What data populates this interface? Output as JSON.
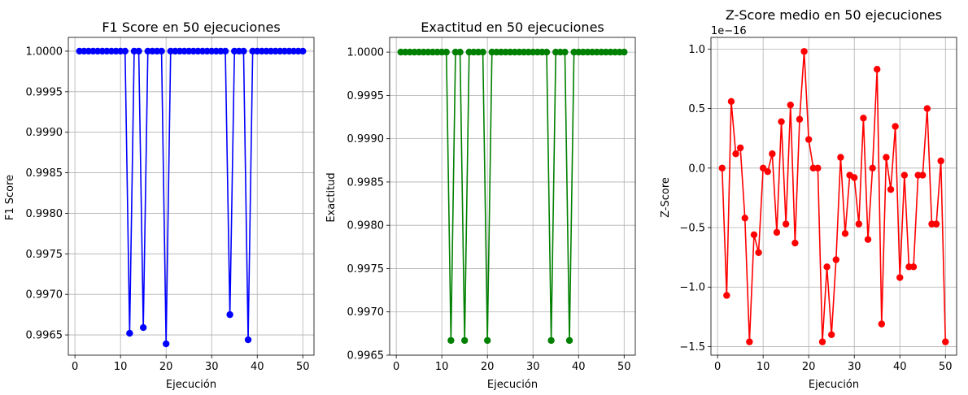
{
  "chart_data": [
    {
      "type": "line",
      "title": "F1 Score en 50 ejecuciones",
      "xlabel": "Ejecución",
      "ylabel": "F1 Score",
      "xlim": [
        -1.45,
        52.45
      ],
      "ylim": [
        0.99625,
        1.00017
      ],
      "xticks": [
        0,
        10,
        20,
        30,
        40,
        50
      ],
      "xtick_labels": [
        "0",
        "10",
        "20",
        "30",
        "40",
        "50"
      ],
      "yticks": [
        0.9965,
        0.997,
        0.9975,
        0.998,
        0.9985,
        0.999,
        0.9995,
        1.0
      ],
      "ytick_labels": [
        "0.9965",
        "0.9970",
        "0.9975",
        "0.9980",
        "0.9985",
        "0.9990",
        "0.9995",
        "1.0000"
      ],
      "grid": true,
      "series": [
        {
          "color": "#0000ff",
          "marker": "circle",
          "x": [
            1,
            2,
            3,
            4,
            5,
            6,
            7,
            8,
            9,
            10,
            11,
            12,
            13,
            14,
            15,
            16,
            17,
            18,
            19,
            20,
            21,
            22,
            23,
            24,
            25,
            26,
            27,
            28,
            29,
            30,
            31,
            32,
            33,
            34,
            35,
            36,
            37,
            38,
            39,
            40,
            41,
            42,
            43,
            44,
            45,
            46,
            47,
            48,
            49,
            50
          ],
          "values": [
            1,
            1,
            1,
            1,
            1,
            1,
            1,
            1,
            1,
            1,
            1,
            0.99652,
            1,
            1,
            0.99659,
            1,
            1,
            1,
            1,
            0.99639,
            1,
            1,
            1,
            1,
            1,
            1,
            1,
            1,
            1,
            1,
            1,
            1,
            1,
            0.99675,
            1,
            1,
            1,
            0.99644,
            1,
            1,
            1,
            1,
            1,
            1,
            1,
            1,
            1,
            1,
            1,
            1
          ]
        }
      ]
    },
    {
      "type": "line",
      "title": "Exactitud en 50 ejecuciones",
      "xlabel": "Ejecución",
      "ylabel": "Exactitud",
      "xlim": [
        -1.45,
        52.45
      ],
      "ylim": [
        0.9965,
        1.00017
      ],
      "xticks": [
        0,
        10,
        20,
        30,
        40,
        50
      ],
      "xtick_labels": [
        "0",
        "10",
        "20",
        "30",
        "40",
        "50"
      ],
      "yticks": [
        0.9965,
        0.997,
        0.9975,
        0.998,
        0.9985,
        0.999,
        0.9995,
        1.0
      ],
      "ytick_labels": [
        "0.9965",
        "0.9970",
        "0.9975",
        "0.9980",
        "0.9985",
        "0.9990",
        "0.9995",
        "1.0000"
      ],
      "grid": true,
      "series": [
        {
          "color": "#008000",
          "marker": "circle",
          "x": [
            1,
            2,
            3,
            4,
            5,
            6,
            7,
            8,
            9,
            10,
            11,
            12,
            13,
            14,
            15,
            16,
            17,
            18,
            19,
            20,
            21,
            22,
            23,
            24,
            25,
            26,
            27,
            28,
            29,
            30,
            31,
            32,
            33,
            34,
            35,
            36,
            37,
            38,
            39,
            40,
            41,
            42,
            43,
            44,
            45,
            46,
            47,
            48,
            49,
            50
          ],
          "values": [
            1,
            1,
            1,
            1,
            1,
            1,
            1,
            1,
            1,
            1,
            1,
            0.99667,
            1,
            1,
            0.99667,
            1,
            1,
            1,
            1,
            0.99667,
            1,
            1,
            1,
            1,
            1,
            1,
            1,
            1,
            1,
            1,
            1,
            1,
            1,
            0.99667,
            1,
            1,
            1,
            0.99667,
            1,
            1,
            1,
            1,
            1,
            1,
            1,
            1,
            1,
            1,
            1,
            1
          ]
        }
      ]
    },
    {
      "type": "line",
      "title": "Z-Score medio en 50 ejecuciones",
      "xlabel": "Ejecución",
      "ylabel": "Z-Score",
      "offset_label": "1e−16",
      "xlim": [
        -1.45,
        52.45
      ],
      "ylim": [
        -1.572,
        1.098
      ],
      "xticks": [
        0,
        10,
        20,
        30,
        40,
        50
      ],
      "xtick_labels": [
        "0",
        "10",
        "20",
        "30",
        "40",
        "50"
      ],
      "yticks": [
        -1.5,
        -1.0,
        -0.5,
        0.0,
        0.5,
        1.0
      ],
      "ytick_labels": [
        "−1.5",
        "−1.0",
        "−0.5",
        "0.0",
        "0.5",
        "1.0"
      ],
      "grid": true,
      "series": [
        {
          "color": "#ff0000",
          "marker": "circle",
          "x": [
            1,
            2,
            3,
            4,
            5,
            6,
            7,
            8,
            9,
            10,
            11,
            12,
            13,
            14,
            15,
            16,
            17,
            18,
            19,
            20,
            21,
            22,
            23,
            24,
            25,
            26,
            27,
            28,
            29,
            30,
            31,
            32,
            33,
            34,
            35,
            36,
            37,
            38,
            39,
            40,
            41,
            42,
            43,
            44,
            45,
            46,
            47,
            48,
            49,
            50
          ],
          "values": [
            0.0,
            -1.07,
            0.56,
            0.12,
            0.17,
            -0.42,
            -1.46,
            -0.56,
            -0.71,
            0.0,
            -0.03,
            0.12,
            -0.54,
            0.39,
            -0.47,
            0.53,
            -0.63,
            0.41,
            0.98,
            0.24,
            0.0,
            0.0,
            -1.46,
            -0.83,
            -1.4,
            -0.77,
            0.09,
            -0.55,
            -0.06,
            -0.08,
            -0.47,
            0.42,
            -0.6,
            0.0,
            0.83,
            -1.31,
            0.09,
            -0.18,
            0.35,
            -0.92,
            -0.06,
            -0.83,
            -0.83,
            -0.06,
            -0.06,
            0.5,
            -0.47,
            -0.47,
            0.06,
            -1.46
          ]
        }
      ]
    }
  ]
}
